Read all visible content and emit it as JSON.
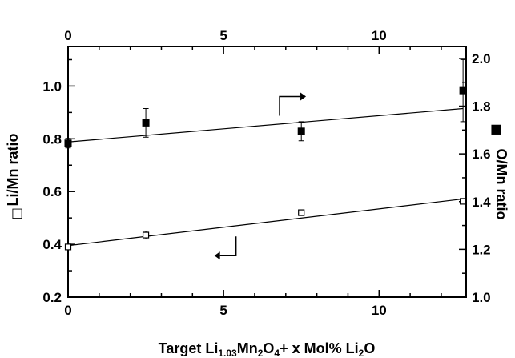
{
  "chart_data": {
    "type": "scatter",
    "xlabel": {
      "parts": [
        {
          "text": "Target Li",
          "sub": false
        },
        {
          "text": "1.03",
          "sub": true
        },
        {
          "text": "Mn",
          "sub": false
        },
        {
          "text": "2",
          "sub": true
        },
        {
          "text": "O",
          "sub": false
        },
        {
          "text": "4",
          "sub": true
        },
        {
          "text": "+ x Mol% Li",
          "sub": false
        },
        {
          "text": "2",
          "sub": true
        },
        {
          "text": "O",
          "sub": false
        }
      ]
    },
    "ylabel_left": "Li/Mn ratio",
    "ylabel_right": "O/Mn ratio",
    "left_marker_glyph": "□",
    "right_marker_glyph": "■",
    "xlim": [
      0,
      12.8
    ],
    "ylim_left": [
      0.2,
      1.15
    ],
    "ylim_right": [
      1.0,
      2.05
    ],
    "x_ticks": [
      "0",
      "5",
      "10"
    ],
    "y_left_ticks": [
      "0.2",
      "0.4",
      "0.6",
      "0.8",
      "1.0"
    ],
    "y_right_ticks": [
      "1.0",
      "1.2",
      "1.4",
      "1.6",
      "1.8",
      "2.0"
    ],
    "grid": false,
    "series": [
      {
        "axis": "left",
        "marker": "open-square",
        "points": [
          {
            "x": 0,
            "y": 0.39,
            "err": 0.005
          },
          {
            "x": 2.5,
            "y": 0.435,
            "err": 0.015
          },
          {
            "x": 7.5,
            "y": 0.52,
            "err": 0.01
          },
          {
            "x": 12.7,
            "y": 0.563,
            "err": 0.005
          }
        ],
        "fit": {
          "x0": 0,
          "y0": 0.395,
          "x1": 12.7,
          "y1": 0.572
        }
      },
      {
        "axis": "right",
        "marker": "filled-square",
        "points": [
          {
            "x": 0,
            "y": 1.645,
            "err": 0.02
          },
          {
            "x": 2.5,
            "y": 1.73,
            "err": 0.06
          },
          {
            "x": 7.5,
            "y": 1.695,
            "err": 0.04
          },
          {
            "x": 12.7,
            "y": 1.865,
            "err": 0.13
          }
        ],
        "fit": {
          "x0": 0,
          "y0": 1.65,
          "x1": 12.7,
          "y1": 1.79
        }
      }
    ],
    "annotations": [
      {
        "type": "arrow-right",
        "axis": "right",
        "x": 6.8,
        "y": 1.76
      },
      {
        "type": "arrow-left",
        "axis": "left",
        "x": 5.4,
        "y": 0.43
      }
    ],
    "colors": {
      "ink": "#000000",
      "background": "#ffffff"
    }
  }
}
